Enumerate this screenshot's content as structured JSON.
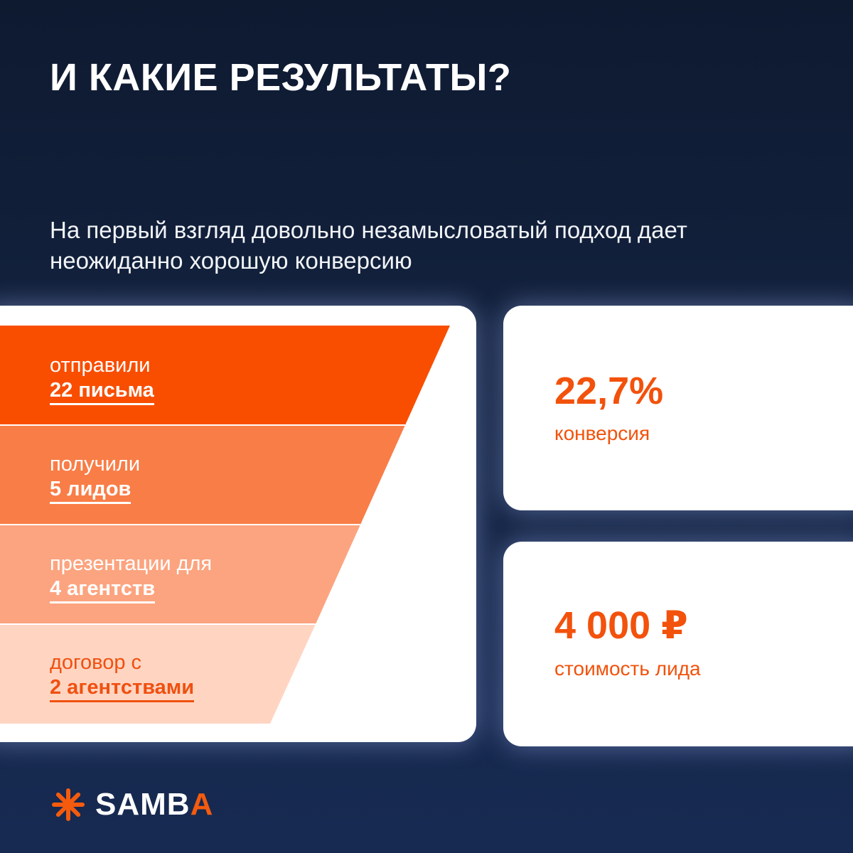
{
  "header": {
    "title": "И КАКИЕ РЕЗУЛЬТАТЫ?",
    "subtitle": "На первый взгляд довольно незамысловатый подход дает неожиданно хорошую конверсию"
  },
  "funnel": {
    "stages": [
      {
        "label": "отправили",
        "value": "22 письма",
        "color": "#f94e00"
      },
      {
        "label": "получили",
        "value": "5 лидов",
        "color": "#f97d47"
      },
      {
        "label": "презентации для",
        "value": "4 агентств",
        "color": "#fca47f"
      },
      {
        "label": "договор с",
        "value": "2 агентствами",
        "color": "#ffd5c2"
      }
    ]
  },
  "metrics": [
    {
      "value": "22,7%",
      "label": "конверсия"
    },
    {
      "value": "4 000 ₽",
      "label": "стоимость лида"
    }
  ],
  "brand": {
    "icon": "asterisk-logo-icon",
    "name_main": "SAMB",
    "name_accent": "A",
    "accent_color": "#f45b0e"
  }
}
